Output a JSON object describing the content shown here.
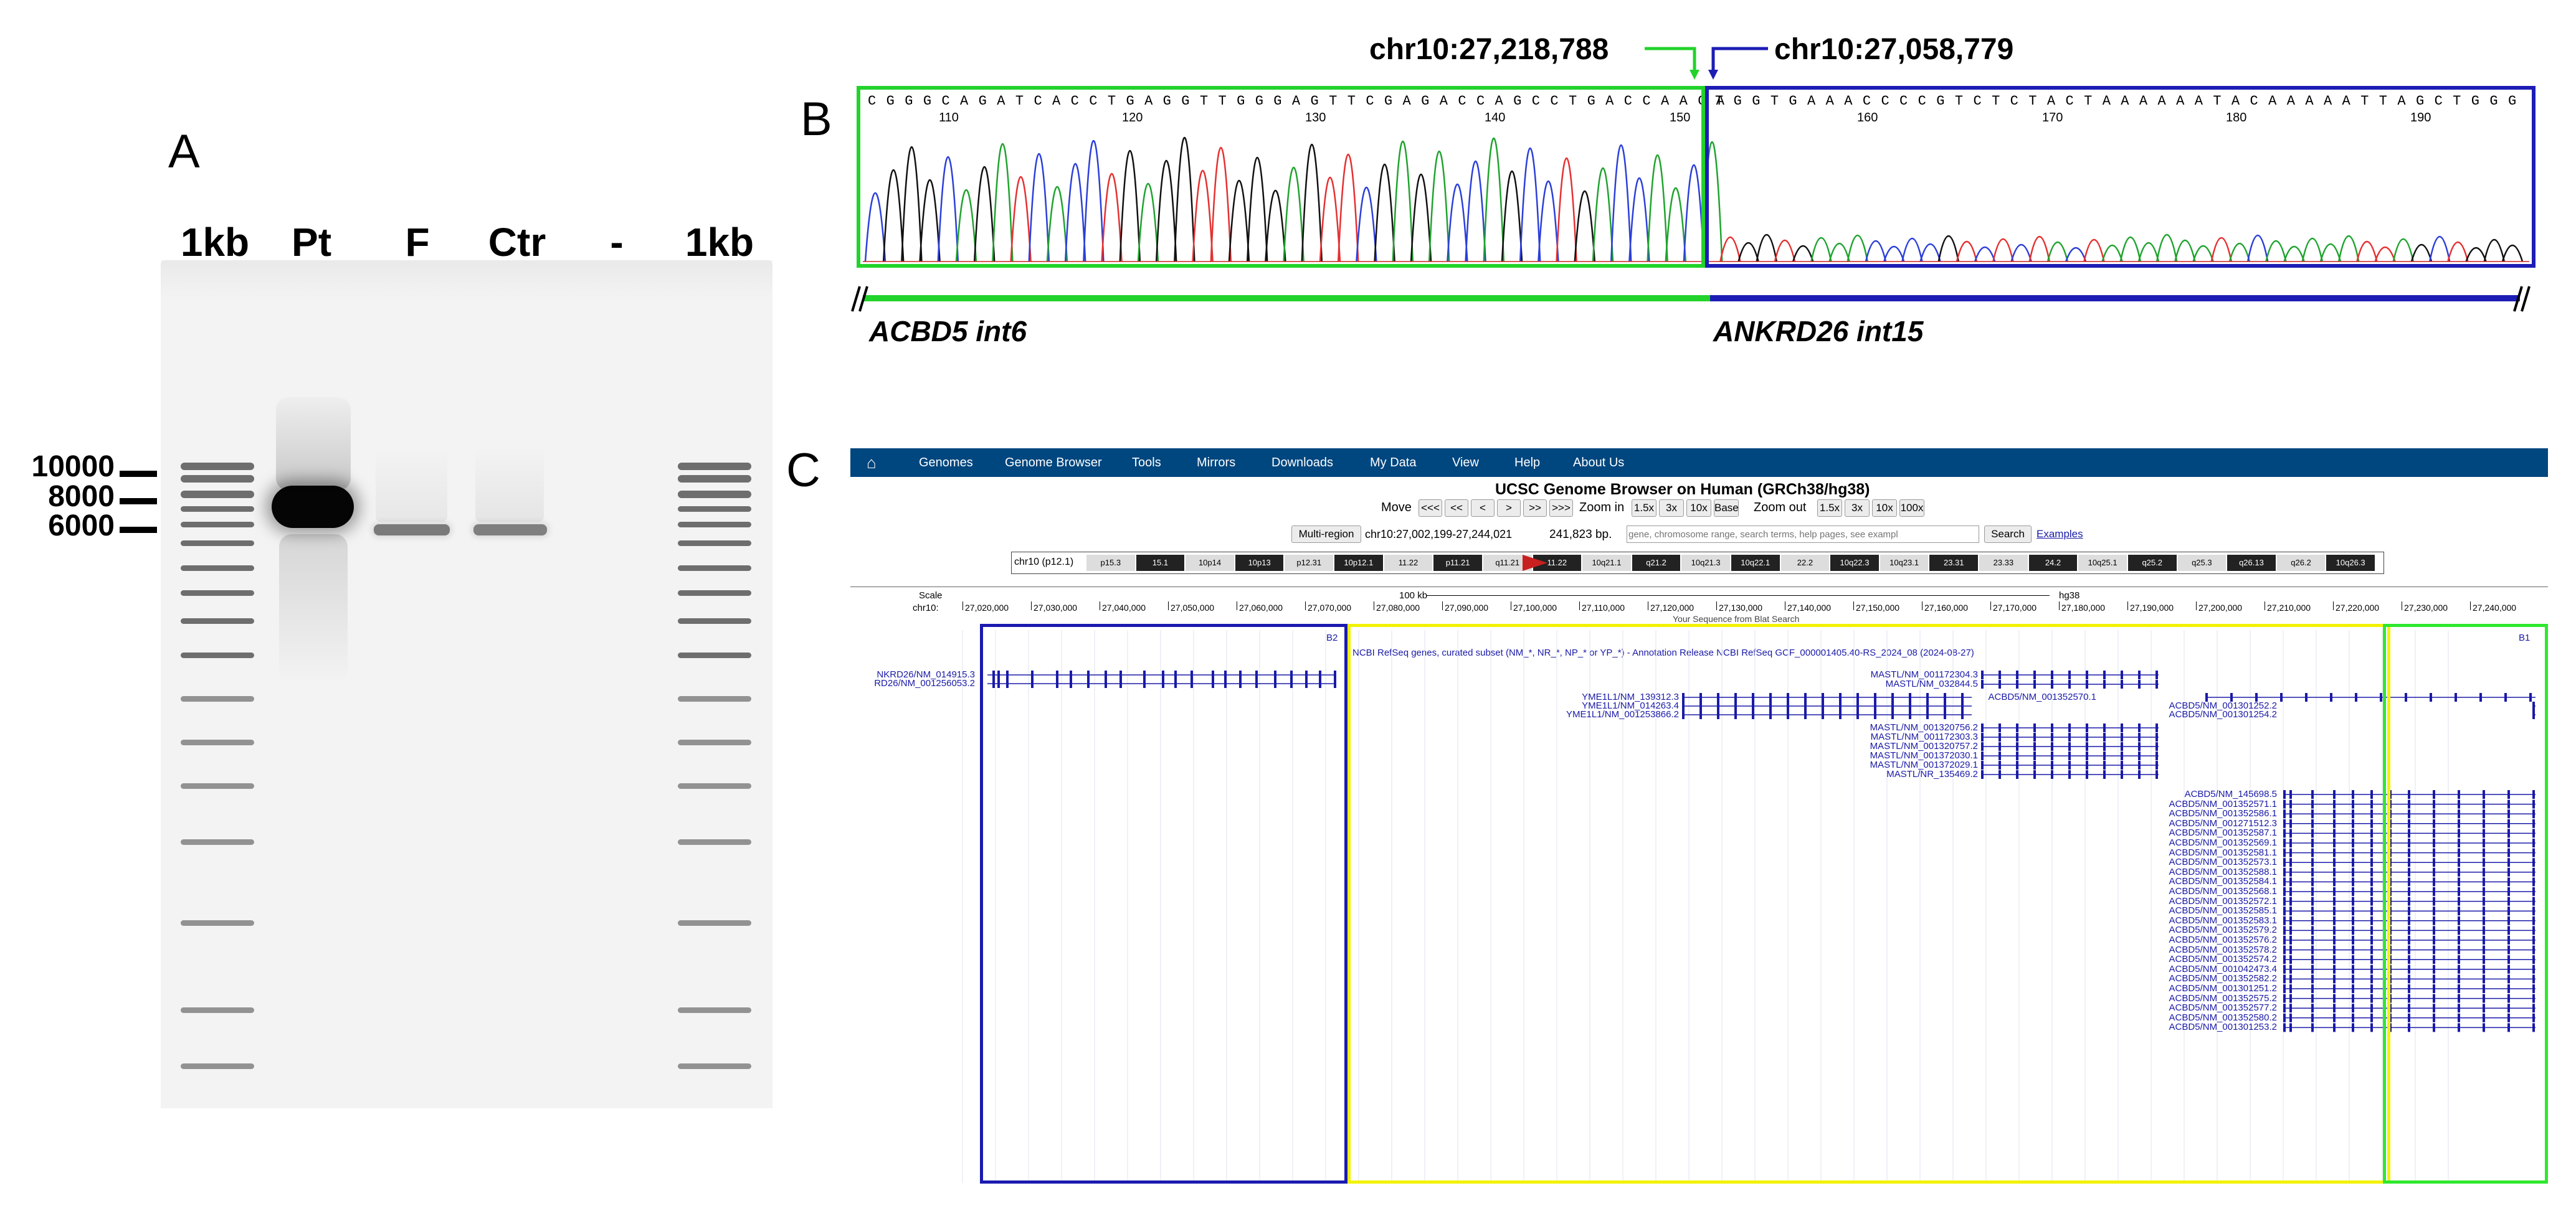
{
  "panels": {
    "a": "A",
    "b": "B",
    "c": "C"
  },
  "gel": {
    "lanes": [
      "1kb",
      "Pt",
      "F",
      "Ctr",
      "-",
      "1kb"
    ],
    "markers": [
      "10000",
      "8000",
      "6000"
    ]
  },
  "sequencing": {
    "seq_left": "C G G G C A G A T C A C C T G A G G T T G G G A G T T C G A G A C C A G C C T G A C C A A C A",
    "seq_right": "T G G T G A A A C C C C G T C T C T A C T A A A A A A T A C A A A A A T T A G C T G G G",
    "positions": [
      "110",
      "120",
      "130",
      "140",
      "150",
      "160",
      "170",
      "180",
      "190"
    ],
    "junction_left": "chr10:27,218,788",
    "junction_right": "chr10:27,058,779",
    "gene_left": "ACBD5 int6",
    "gene_right": "ANKRD26 int15",
    "colors": {
      "left": "#22d32b",
      "right": "#1d1db5",
      "A": "#1fa32e",
      "C": "#2b3fd9",
      "G": "#111111",
      "T": "#e53030"
    }
  },
  "ucsc": {
    "nav": [
      "Genomes",
      "Genome Browser",
      "Tools",
      "Mirrors",
      "Downloads",
      "My Data",
      "View",
      "Help",
      "About Us"
    ],
    "title": "UCSC Genome Browser on Human (GRCh38/hg38)",
    "move_label": "Move",
    "move_buttons": [
      "<<<",
      "<<",
      "<",
      ">",
      ">>",
      ">>>"
    ],
    "zoom_in_label": "Zoom in",
    "zoom_in_buttons": [
      "1.5x",
      "3x",
      "10x",
      "Base"
    ],
    "zoom_out_label": "Zoom out",
    "zoom_out_buttons": [
      "1.5x",
      "3x",
      "10x",
      "100x"
    ],
    "multi_region": "Multi-region",
    "position": "chr10:27,002,199-27,244,021",
    "size": "241,823 bp.",
    "search_placeholder": "gene, chromosome range, search terms, help pages, see exampl",
    "search_button": "Search",
    "examples": "Examples",
    "chrom_label": "chr10 (p12.1)",
    "bands": [
      "p15.3",
      "15.1",
      "10p14",
      "10p13",
      "p12.31",
      "10p12.1",
      "11.22",
      "p11.21",
      "q11.21",
      "11.22",
      "10q21.1",
      "q21.2",
      "10q21.3",
      "10q22.1",
      "22.2",
      "10q22.3",
      "10q23.1",
      "23.31",
      "23.33",
      "24.2",
      "10q25.1",
      "q25.2",
      "q25.3",
      "q26.13",
      "q26.2",
      "10q26.3"
    ],
    "scale_label": "Scale",
    "scale_value": "100 kb",
    "assembly": "hg38",
    "chr_label": "chr10:",
    "ticks": [
      "27,020,000",
      "27,030,000",
      "27,040,000",
      "27,050,000",
      "27,060,000",
      "27,070,000",
      "27,080,000",
      "27,090,000",
      "27,100,000",
      "27,110,000",
      "27,120,000",
      "27,130,000",
      "27,140,000",
      "27,150,000",
      "27,160,000",
      "27,170,000",
      "27,180,000",
      "27,190,000",
      "27,200,000",
      "27,210,000",
      "27,220,000",
      "27,230,000",
      "27,240,000"
    ],
    "track_title": "NCBI RefSeq genes, curated subset (NM_*, NR_*, NP_* or YP_*) - Annotation Release NCBI RefSeq GCF_000001405.40-RS_2024_08 (2024-08-27)",
    "blat_label": "Your Sequence from Blat Search",
    "b2": "B2",
    "b1": "B1",
    "transcripts_left": [
      "NKRD26/NM_014915.3",
      "RD26/NM_001256053.2"
    ],
    "transcripts_mid": [
      "MASTL/NM_001172304.3",
      "MASTL/NM_032844.5",
      "YME1L1/NM_139312.3",
      "YME1L1/NM_014263.4",
      "YME1L1/NM_001253866.2",
      "MASTL/NM_001320756.2",
      "MASTL/NM_001172303.3",
      "MASTL/NM_001320757.2",
      "MASTL/NM_001372030.1",
      "MASTL/NM_001372029.1",
      "MASTL/NR_135469.2"
    ],
    "transcripts_acbd5_top": [
      "ACBD5/NM_001352570.1",
      "ACBD5/NM_001301252.2",
      "ACBD5/NM_001301254.2"
    ],
    "transcripts_acbd5": [
      "ACBD5/NM_145698.5",
      "ACBD5/NM_001352571.1",
      "ACBD5/NM_001352586.1",
      "ACBD5/NM_001271512.3",
      "ACBD5/NM_001352587.1",
      "ACBD5/NM_001352569.1",
      "ACBD5/NM_001352581.1",
      "ACBD5/NM_001352573.1",
      "ACBD5/NM_001352588.1",
      "ACBD5/NM_001352584.1",
      "ACBD5/NM_001352568.1",
      "ACBD5/NM_001352572.1",
      "ACBD5/NM_001352585.1",
      "ACBD5/NM_001352583.1",
      "ACBD5/NM_001352579.2",
      "ACBD5/NM_001352576.2",
      "ACBD5/NM_001352578.2",
      "ACBD5/NM_001352574.2",
      "ACBD5/NM_001042473.4",
      "ACBD5/NM_001352582.2",
      "ACBD5/NM_001301251.2",
      "ACBD5/NM_001352575.2",
      "ACBD5/NM_001352577.2",
      "ACBD5/NM_001352580.2",
      "ACBD5/NM_001301253.2"
    ],
    "highlight_colors": {
      "blue": "#1a1ab0",
      "yellow": "#f2f200",
      "green": "#2ee82e"
    }
  }
}
